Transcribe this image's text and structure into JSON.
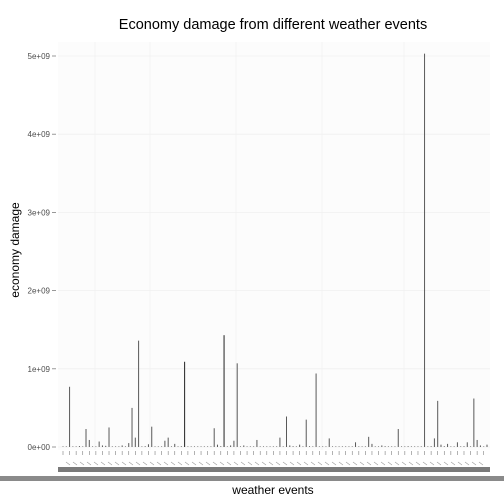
{
  "chart_data": {
    "type": "bar",
    "title": "Economy damage from different weather events",
    "xlabel": "weather events",
    "ylabel": "economy damage",
    "ylim": [
      0,
      5300000000
    ],
    "y_ticks": [
      0,
      1000000000,
      2000000000,
      3000000000,
      4000000000,
      5000000000
    ],
    "y_tick_labels": [
      "0e+00",
      "1e+09",
      "2e+09",
      "3e+09",
      "4e+09",
      "5e+09"
    ],
    "grid": true,
    "legend": "none",
    "category_labels_legible": false,
    "bar_count": 130,
    "values": [
      8000000,
      3000000,
      770000000,
      5000000,
      1000000,
      12000000,
      2000000,
      230000000,
      90000000,
      6000000,
      1000000,
      70000000,
      20000000,
      15000000,
      250000000,
      3000000,
      1000000,
      4000000,
      20000000,
      1000000,
      50000000,
      500000000,
      120000000,
      1360000000,
      2000000,
      10000000,
      35000000,
      260000000,
      5000000,
      1000000,
      2000000,
      80000000,
      120000000,
      3000000,
      40000000,
      1000000,
      10000000,
      1090000000,
      2000000,
      1000000,
      5000000,
      3000000,
      1000000,
      2000000,
      4000000,
      1000000,
      240000000,
      30000000,
      10000000,
      1430000000,
      2000000,
      20000000,
      80000000,
      1070000000,
      5000000,
      20000000,
      5000000,
      2000000,
      1000000,
      90000000,
      3000000,
      1000000,
      2000000,
      4000000,
      1000000,
      2000000,
      120000000,
      1000000,
      390000000,
      20000000,
      10000000,
      5000000,
      30000000,
      1000000,
      350000000,
      10000000,
      2000000,
      940000000,
      5000000,
      3000000,
      1000000,
      110000000,
      1000000,
      5000000,
      2000000,
      1000000,
      3000000,
      1000000,
      2000000,
      60000000,
      3000000,
      1000000,
      2000000,
      130000000,
      40000000,
      1000000,
      3000000,
      20000000,
      10000000,
      5000000,
      2000000,
      1000000,
      230000000,
      1000000,
      2000000,
      10000000,
      1000000,
      5000000,
      2000000,
      1000000,
      5030000000,
      5000000,
      10000000,
      110000000,
      590000000,
      30000000,
      10000000,
      40000000,
      5000000,
      2000000,
      60000000,
      8000000,
      10000000,
      60000000,
      5000000,
      620000000,
      90000000,
      20000000,
      5000000,
      30000000
    ]
  },
  "colors": {
    "panel_background": "#fcfcfc",
    "grid_line": "#f0f0f0",
    "bar_fill": "#595959",
    "axis_band": "#7a7a7a",
    "tick_text": "#4d4d4d",
    "tick_mark": "#7f7f7f"
  }
}
